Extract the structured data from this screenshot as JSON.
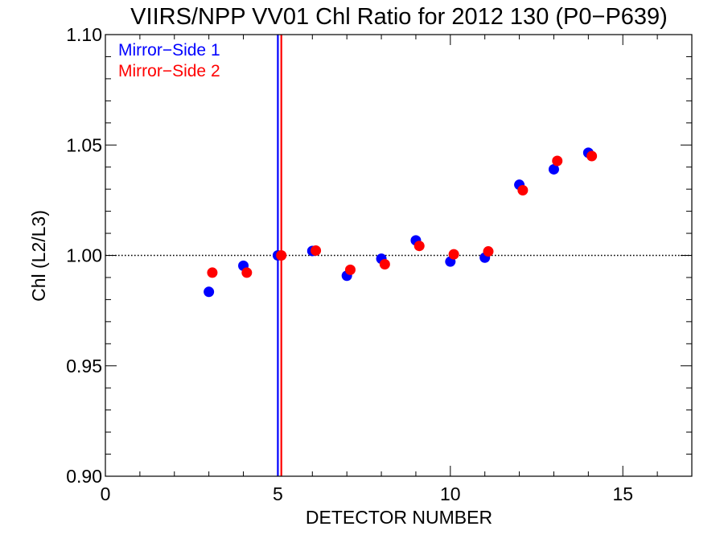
{
  "chart_data": {
    "type": "scatter",
    "title": "VIIRS/NPP VV01 Chl Ratio for 2012 130 (P0−P639)",
    "xlabel": "DETECTOR NUMBER",
    "ylabel": "Chl (L2/L3)",
    "xlim": [
      0,
      17
    ],
    "ylim": [
      0.9,
      1.1
    ],
    "xticks": [
      0,
      5,
      10,
      15
    ],
    "xtick_labels": [
      "0",
      "5",
      "10",
      "15"
    ],
    "yticks": [
      0.9,
      0.95,
      1.0,
      1.05,
      1.1
    ],
    "ytick_labels": [
      "0.90",
      "0.95",
      "1.00",
      "1.05",
      "1.10"
    ],
    "grid": false,
    "legend_position": "top-left",
    "reference_line": {
      "y": 1.0,
      "style": "dotted"
    },
    "series": [
      {
        "name": "Mirror−Side 1",
        "color": "#0000ff",
        "vline_x": 5.0,
        "x": [
          3,
          4,
          5,
          6,
          7,
          8,
          9,
          10,
          11,
          12,
          13,
          14
        ],
        "y": [
          0.9835,
          0.9953,
          1.0,
          1.002,
          0.9908,
          0.9985,
          1.0068,
          0.9972,
          0.999,
          1.032,
          1.039,
          1.0465
        ]
      },
      {
        "name": "Mirror−Side 2",
        "color": "#ff0000",
        "vline_x": 5.1,
        "x": [
          3.1,
          4.1,
          5.1,
          6.1,
          7.1,
          8.1,
          9.1,
          10.1,
          11.1,
          12.1,
          13.1,
          14.1
        ],
        "y": [
          0.9922,
          0.9922,
          1.0,
          1.0022,
          0.9935,
          0.996,
          1.0043,
          1.0005,
          1.0018,
          1.0295,
          1.0428,
          1.045
        ]
      }
    ]
  }
}
